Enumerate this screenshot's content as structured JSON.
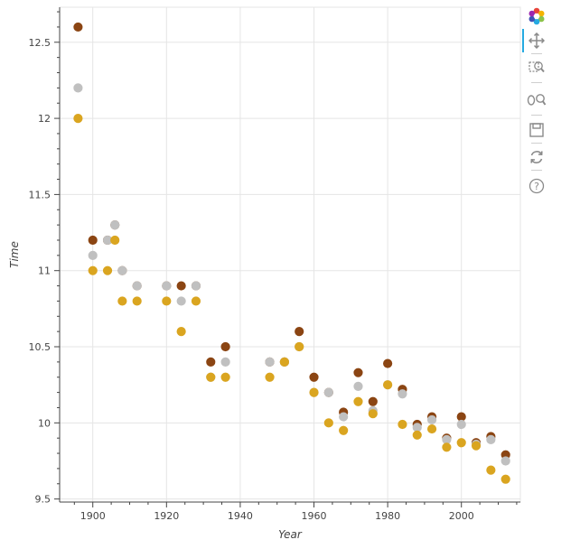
{
  "chart_data": {
    "type": "scatter",
    "xlabel": "Year",
    "ylabel": "Time",
    "xlim": [
      1891,
      2016
    ],
    "ylim": [
      9.48,
      12.73
    ],
    "x_ticks": [
      1900,
      1920,
      1940,
      1960,
      1980,
      2000
    ],
    "x_tick_labels": [
      "1900",
      "1920",
      "1940",
      "1960",
      "1980",
      "2000"
    ],
    "y_ticks": [
      9.5,
      10,
      10.5,
      11,
      11.5,
      12,
      12.5
    ],
    "y_tick_labels": [
      "9.5",
      "10",
      "10.5",
      "11",
      "11.5",
      "12",
      "12.5"
    ],
    "grid": true,
    "series": [
      {
        "color": "#8B4513",
        "points": [
          [
            1896,
            12.6
          ],
          [
            1900,
            11.2
          ],
          [
            1904,
            11.2
          ],
          [
            1906,
            11.3
          ],
          [
            1908,
            11.0
          ],
          [
            1912,
            10.9
          ],
          [
            1920,
            10.9
          ],
          [
            1924,
            10.9
          ],
          [
            1928,
            10.9
          ],
          [
            1932,
            10.4
          ],
          [
            1936,
            10.5
          ],
          [
            1948,
            10.4
          ],
          [
            1952,
            10.4
          ],
          [
            1956,
            10.6
          ],
          [
            1960,
            10.3
          ],
          [
            1964,
            10.2
          ],
          [
            1968,
            10.07
          ],
          [
            1972,
            10.33
          ],
          [
            1976,
            10.14
          ],
          [
            1980,
            10.39
          ],
          [
            1984,
            10.22
          ],
          [
            1988,
            9.99
          ],
          [
            1992,
            10.04
          ],
          [
            1996,
            9.9
          ],
          [
            2000,
            10.04
          ],
          [
            2004,
            9.87
          ],
          [
            2008,
            9.91
          ],
          [
            2012,
            9.79
          ]
        ]
      },
      {
        "color": "#C0C0C0",
        "points": [
          [
            1896,
            12.2
          ],
          [
            1900,
            11.1
          ],
          [
            1904,
            11.2
          ],
          [
            1906,
            11.3
          ],
          [
            1908,
            11.0
          ],
          [
            1912,
            10.9
          ],
          [
            1920,
            10.9
          ],
          [
            1924,
            10.8
          ],
          [
            1928,
            10.9
          ],
          [
            1932,
            10.3
          ],
          [
            1936,
            10.4
          ],
          [
            1948,
            10.4
          ],
          [
            1952,
            10.4
          ],
          [
            1956,
            10.5
          ],
          [
            1960,
            10.2
          ],
          [
            1964,
            10.2
          ],
          [
            1968,
            10.04
          ],
          [
            1972,
            10.24
          ],
          [
            1976,
            10.08
          ],
          [
            1980,
            10.25
          ],
          [
            1984,
            10.19
          ],
          [
            1988,
            9.97
          ],
          [
            1992,
            10.02
          ],
          [
            1996,
            9.89
          ],
          [
            2000,
            9.99
          ],
          [
            2004,
            9.86
          ],
          [
            2008,
            9.89
          ],
          [
            2012,
            9.75
          ]
        ]
      },
      {
        "color": "#DAA520",
        "points": [
          [
            1896,
            12.0
          ],
          [
            1900,
            11.0
          ],
          [
            1904,
            11.0
          ],
          [
            1906,
            11.2
          ],
          [
            1908,
            10.8
          ],
          [
            1912,
            10.8
          ],
          [
            1920,
            10.8
          ],
          [
            1924,
            10.6
          ],
          [
            1928,
            10.8
          ],
          [
            1932,
            10.3
          ],
          [
            1936,
            10.3
          ],
          [
            1948,
            10.3
          ],
          [
            1952,
            10.4
          ],
          [
            1956,
            10.5
          ],
          [
            1960,
            10.2
          ],
          [
            1964,
            10.0
          ],
          [
            1968,
            9.95
          ],
          [
            1972,
            10.14
          ],
          [
            1976,
            10.06
          ],
          [
            1980,
            10.25
          ],
          [
            1984,
            9.99
          ],
          [
            1988,
            9.92
          ],
          [
            1992,
            9.96
          ],
          [
            1996,
            9.84
          ],
          [
            2000,
            9.87
          ],
          [
            2004,
            9.85
          ],
          [
            2008,
            9.69
          ],
          [
            2012,
            9.63
          ]
        ]
      }
    ]
  },
  "toolbar": {
    "tools": [
      {
        "icon": "bokeh-logo-icon",
        "active": false
      },
      {
        "icon": "pan-icon",
        "active": true
      },
      {
        "icon": "box-zoom-icon",
        "active": false
      },
      {
        "icon": "wheel-zoom-icon",
        "active": false
      },
      {
        "icon": "save-icon",
        "active": false
      },
      {
        "icon": "reset-icon",
        "active": false
      },
      {
        "icon": "help-icon",
        "active": false
      }
    ],
    "accent_color": "#26aae1"
  }
}
